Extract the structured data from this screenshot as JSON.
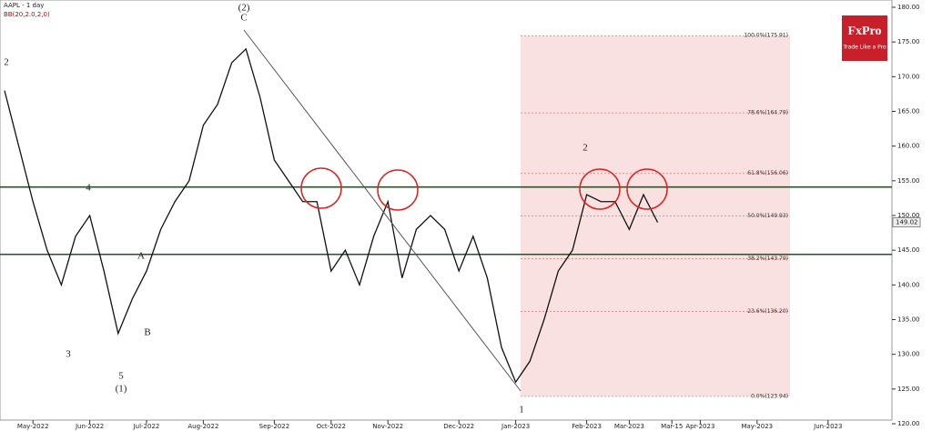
{
  "chart_data": {
    "type": "line",
    "title": "AAPL - 1 day",
    "subtitle": "BB(20,2.0,2,0)",
    "brand": "FxPro",
    "tagline": "Trade Like a Pro",
    "categories": [
      null,
      null,
      "May-2022",
      null,
      null,
      null,
      "Jun-2022",
      null,
      null,
      null,
      "Jul-2022",
      null,
      null,
      null,
      "Aug-2022",
      null,
      null,
      null,
      null,
      "Sep-2022",
      null,
      null,
      null,
      "Oct-2022",
      null,
      null,
      null,
      "Nov-2022",
      null,
      null,
      null,
      null,
      "Dec-2022",
      null,
      null,
      null,
      "Jan-2023",
      null,
      null,
      null,
      null,
      "Feb-2023",
      null,
      null,
      "Mar-2023",
      null,
      null,
      "Mar-15",
      null,
      "Apr-2023",
      null,
      null,
      null,
      "May-2023",
      null,
      null,
      null,
      null,
      "Jun-2023",
      null
    ],
    "values": [
      168,
      160,
      152,
      145,
      140,
      147,
      150,
      142,
      133,
      138,
      142,
      148,
      152,
      155,
      163,
      166,
      172,
      174,
      167,
      158,
      155,
      152,
      152,
      142,
      145,
      140,
      147,
      152,
      141,
      148,
      150,
      148,
      142,
      147,
      141,
      131,
      126,
      129,
      135,
      142,
      145,
      153,
      152,
      152,
      148,
      153,
      149,
      null,
      null,
      null,
      null,
      null,
      null,
      null,
      null,
      null,
      null,
      null,
      null,
      null
    ],
    "color": "#111111",
    "last_price": {
      "value": 149.02,
      "label": "149.02"
    },
    "levels": [
      154.1,
      144.4
    ],
    "level_color": "#1e5a1e",
    "fib_levels": [
      {
        "value": 175.91,
        "label": "100.0%(175.91)"
      },
      {
        "value": 164.79,
        "label": "78.6%(164.79)"
      },
      {
        "value": 156.06,
        "label": "61.8%(156.06)"
      },
      {
        "value": 149.93,
        "label": "50.0%(149.93)"
      },
      {
        "value": 143.79,
        "label": "38.2%(143.79)"
      },
      {
        "value": 136.2,
        "label": "23.6%(136.20)"
      },
      {
        "value": 123.94,
        "label": "0.0%(123.94)"
      }
    ],
    "waves": [
      "(2)",
      "C",
      "2",
      "3",
      "4",
      "5",
      "(1)",
      "A",
      "B",
      "1",
      "2"
    ],
    "ylim": [
      120,
      180
    ],
    "yticks": [
      {
        "value": 120,
        "label": "120.00"
      },
      {
        "value": 125,
        "label": "125.00"
      },
      {
        "value": 130,
        "label": "130.00"
      },
      {
        "value": 135,
        "label": "135.00"
      },
      {
        "value": 140,
        "label": "140.00"
      },
      {
        "value": 145,
        "label": "145.00"
      },
      {
        "value": 150,
        "label": "150.00"
      },
      {
        "value": 155,
        "label": "155.00"
      },
      {
        "value": 160,
        "label": "160.00"
      },
      {
        "value": 165,
        "label": "165.00"
      },
      {
        "value": 170,
        "label": "170.00"
      },
      {
        "value": 175,
        "label": "175.00"
      },
      {
        "value": 180,
        "label": "180.00"
      }
    ]
  }
}
